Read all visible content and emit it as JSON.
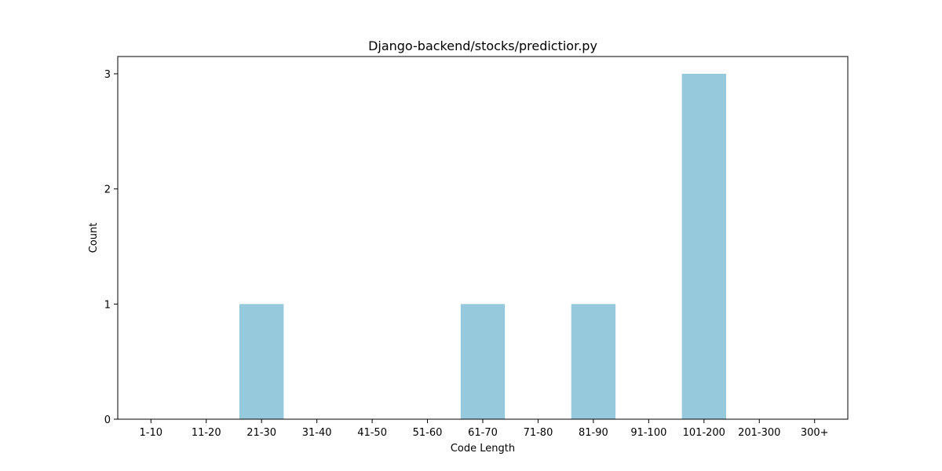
{
  "chart_data": {
    "type": "bar",
    "title": "Django-backend/stocks/predictior.py",
    "xlabel": "Code Length",
    "ylabel": "Count",
    "categories": [
      "1-10",
      "11-20",
      "21-30",
      "31-40",
      "41-50",
      "51-60",
      "61-70",
      "71-80",
      "81-90",
      "91-100",
      "101-200",
      "201-300",
      "300+"
    ],
    "values": [
      0,
      0,
      1,
      0,
      0,
      0,
      1,
      0,
      1,
      0,
      3,
      0,
      0
    ],
    "ylim": [
      0,
      3.15
    ],
    "yticks": [
      0,
      1,
      2,
      3
    ],
    "grid": false,
    "bar_color": "#96c9dc"
  }
}
